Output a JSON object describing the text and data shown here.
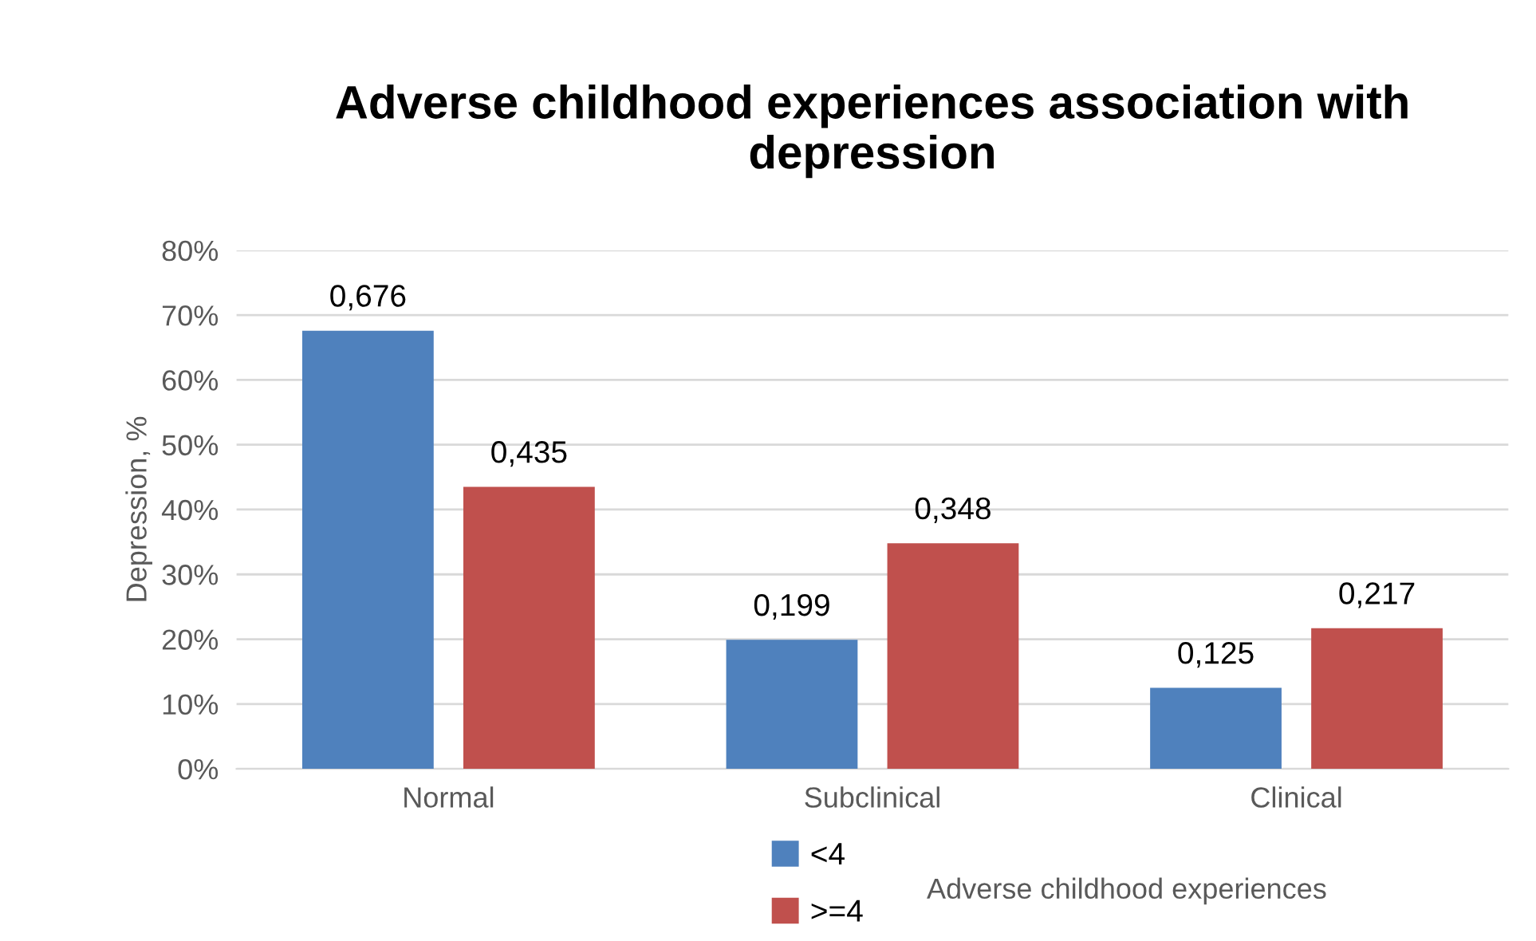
{
  "chart_data": {
    "type": "bar",
    "title": "Adverse childhood experiences association with depression",
    "xlabel": "Adverse childhood experiences",
    "ylabel": "Depression, %",
    "categories": [
      "Normal",
      "Subclinical",
      "Clinical"
    ],
    "series": [
      {
        "name": "<4",
        "color": "#4f81bd",
        "values": [
          0.676,
          0.199,
          0.125
        ],
        "value_labels": [
          "0,676",
          "0,199",
          "0,125"
        ]
      },
      {
        "name": ">=4",
        "color": "#c0504d",
        "values": [
          0.435,
          0.348,
          0.217
        ],
        "value_labels": [
          "0,435",
          "0,348",
          "0,217"
        ]
      }
    ],
    "ylim": [
      0,
      0.8
    ],
    "yticks": [
      {
        "value": 0,
        "label": "0%"
      },
      {
        "value": 0.1,
        "label": "10%"
      },
      {
        "value": 0.2,
        "label": "20%"
      },
      {
        "value": 0.3,
        "label": "30%"
      },
      {
        "value": 0.4,
        "label": "40%"
      },
      {
        "value": 0.5,
        "label": "50%"
      },
      {
        "value": 0.6,
        "label": "60%"
      },
      {
        "value": 0.7,
        "label": "70%"
      },
      {
        "value": 0.8,
        "label": "80%"
      }
    ],
    "grid": "y",
    "legend": "bottom"
  }
}
